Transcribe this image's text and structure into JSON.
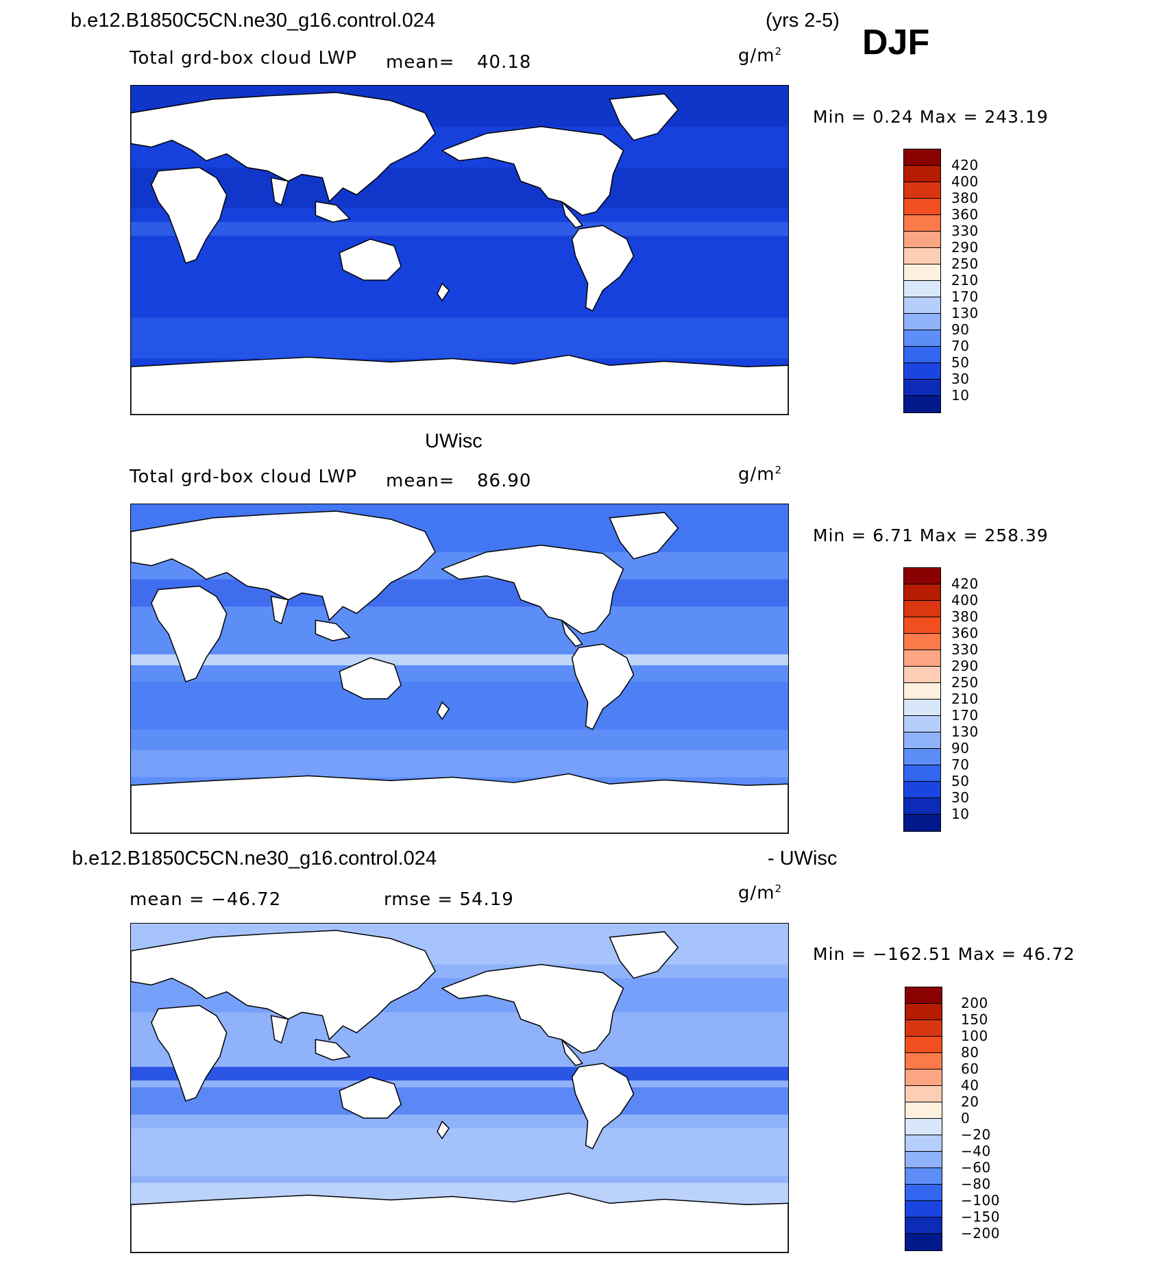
{
  "header": {
    "case_name": "b.e12.B1850C5CN.ne30_g16.control.024",
    "years": "(yrs 2-5)",
    "season": "DJF"
  },
  "panels": [
    {
      "title": "",
      "subtitle": "Total grd-box cloud LWP",
      "mean_label": "mean=",
      "mean_value": "40.18",
      "unit_base": "g/m",
      "unit_sup": "2",
      "minmax": "Min =    0.24  Max =  243.19",
      "levels": [
        "420",
        "400",
        "380",
        "360",
        "330",
        "290",
        "250",
        "210",
        "170",
        "130",
        "90",
        "70",
        "50",
        "30",
        "10"
      ],
      "colors": [
        "#8b0000",
        "#b51c00",
        "#d93612",
        "#f24f20",
        "#fb7a4a",
        "#fca582",
        "#fdcdb4",
        "#fef0de",
        "#d8e8fa",
        "#b5cefb",
        "#8fb2fb",
        "#5d8ef8",
        "#3266ef",
        "#1a45e1",
        "#0c2cb8",
        "#001a8c"
      ],
      "panel_fill": "#1641dd"
    },
    {
      "title": "UWisc",
      "subtitle": "Total grd-box cloud LWP",
      "mean_label": "mean=",
      "mean_value": "86.90",
      "unit_base": "g/m",
      "unit_sup": "2",
      "minmax": "Min =    6.71  Max =  258.39",
      "levels": [
        "420",
        "400",
        "380",
        "360",
        "330",
        "290",
        "250",
        "210",
        "170",
        "130",
        "90",
        "70",
        "50",
        "30",
        "10"
      ],
      "colors": [
        "#8b0000",
        "#b51c00",
        "#d93612",
        "#f24f20",
        "#fb7a4a",
        "#fca582",
        "#fdcdb4",
        "#fef0de",
        "#d8e8fa",
        "#b5cefb",
        "#8fb2fb",
        "#5d8ef8",
        "#3266ef",
        "#1a45e1",
        "#0c2cb8",
        "#001a8c"
      ],
      "panel_fill": "#5d8ef8"
    },
    {
      "title_left": "b.e12.B1850C5CN.ne30_g16.control.024",
      "title_right": "- UWisc",
      "mean_text": "mean = −46.72",
      "rmse_text": "rmse =   54.19",
      "unit_base": "g/m",
      "unit_sup": "2",
      "minmax": "Min = −162.51  Max =   46.72",
      "levels": [
        "200",
        "150",
        "100",
        "80",
        "60",
        "40",
        "20",
        "0",
        "−20",
        "−40",
        "−60",
        "−80",
        "−100",
        "−150",
        "−200"
      ],
      "colors": [
        "#8b0000",
        "#b51c00",
        "#d93612",
        "#f24f20",
        "#fb7a4a",
        "#fca582",
        "#fdcdb4",
        "#fef0de",
        "#d8e8fa",
        "#b5cefb",
        "#8fb2fb",
        "#5d8ef8",
        "#3266ef",
        "#1a45e1",
        "#0c2cb8",
        "#001a8c"
      ],
      "panel_fill": "#8fb2fb"
    }
  ]
}
